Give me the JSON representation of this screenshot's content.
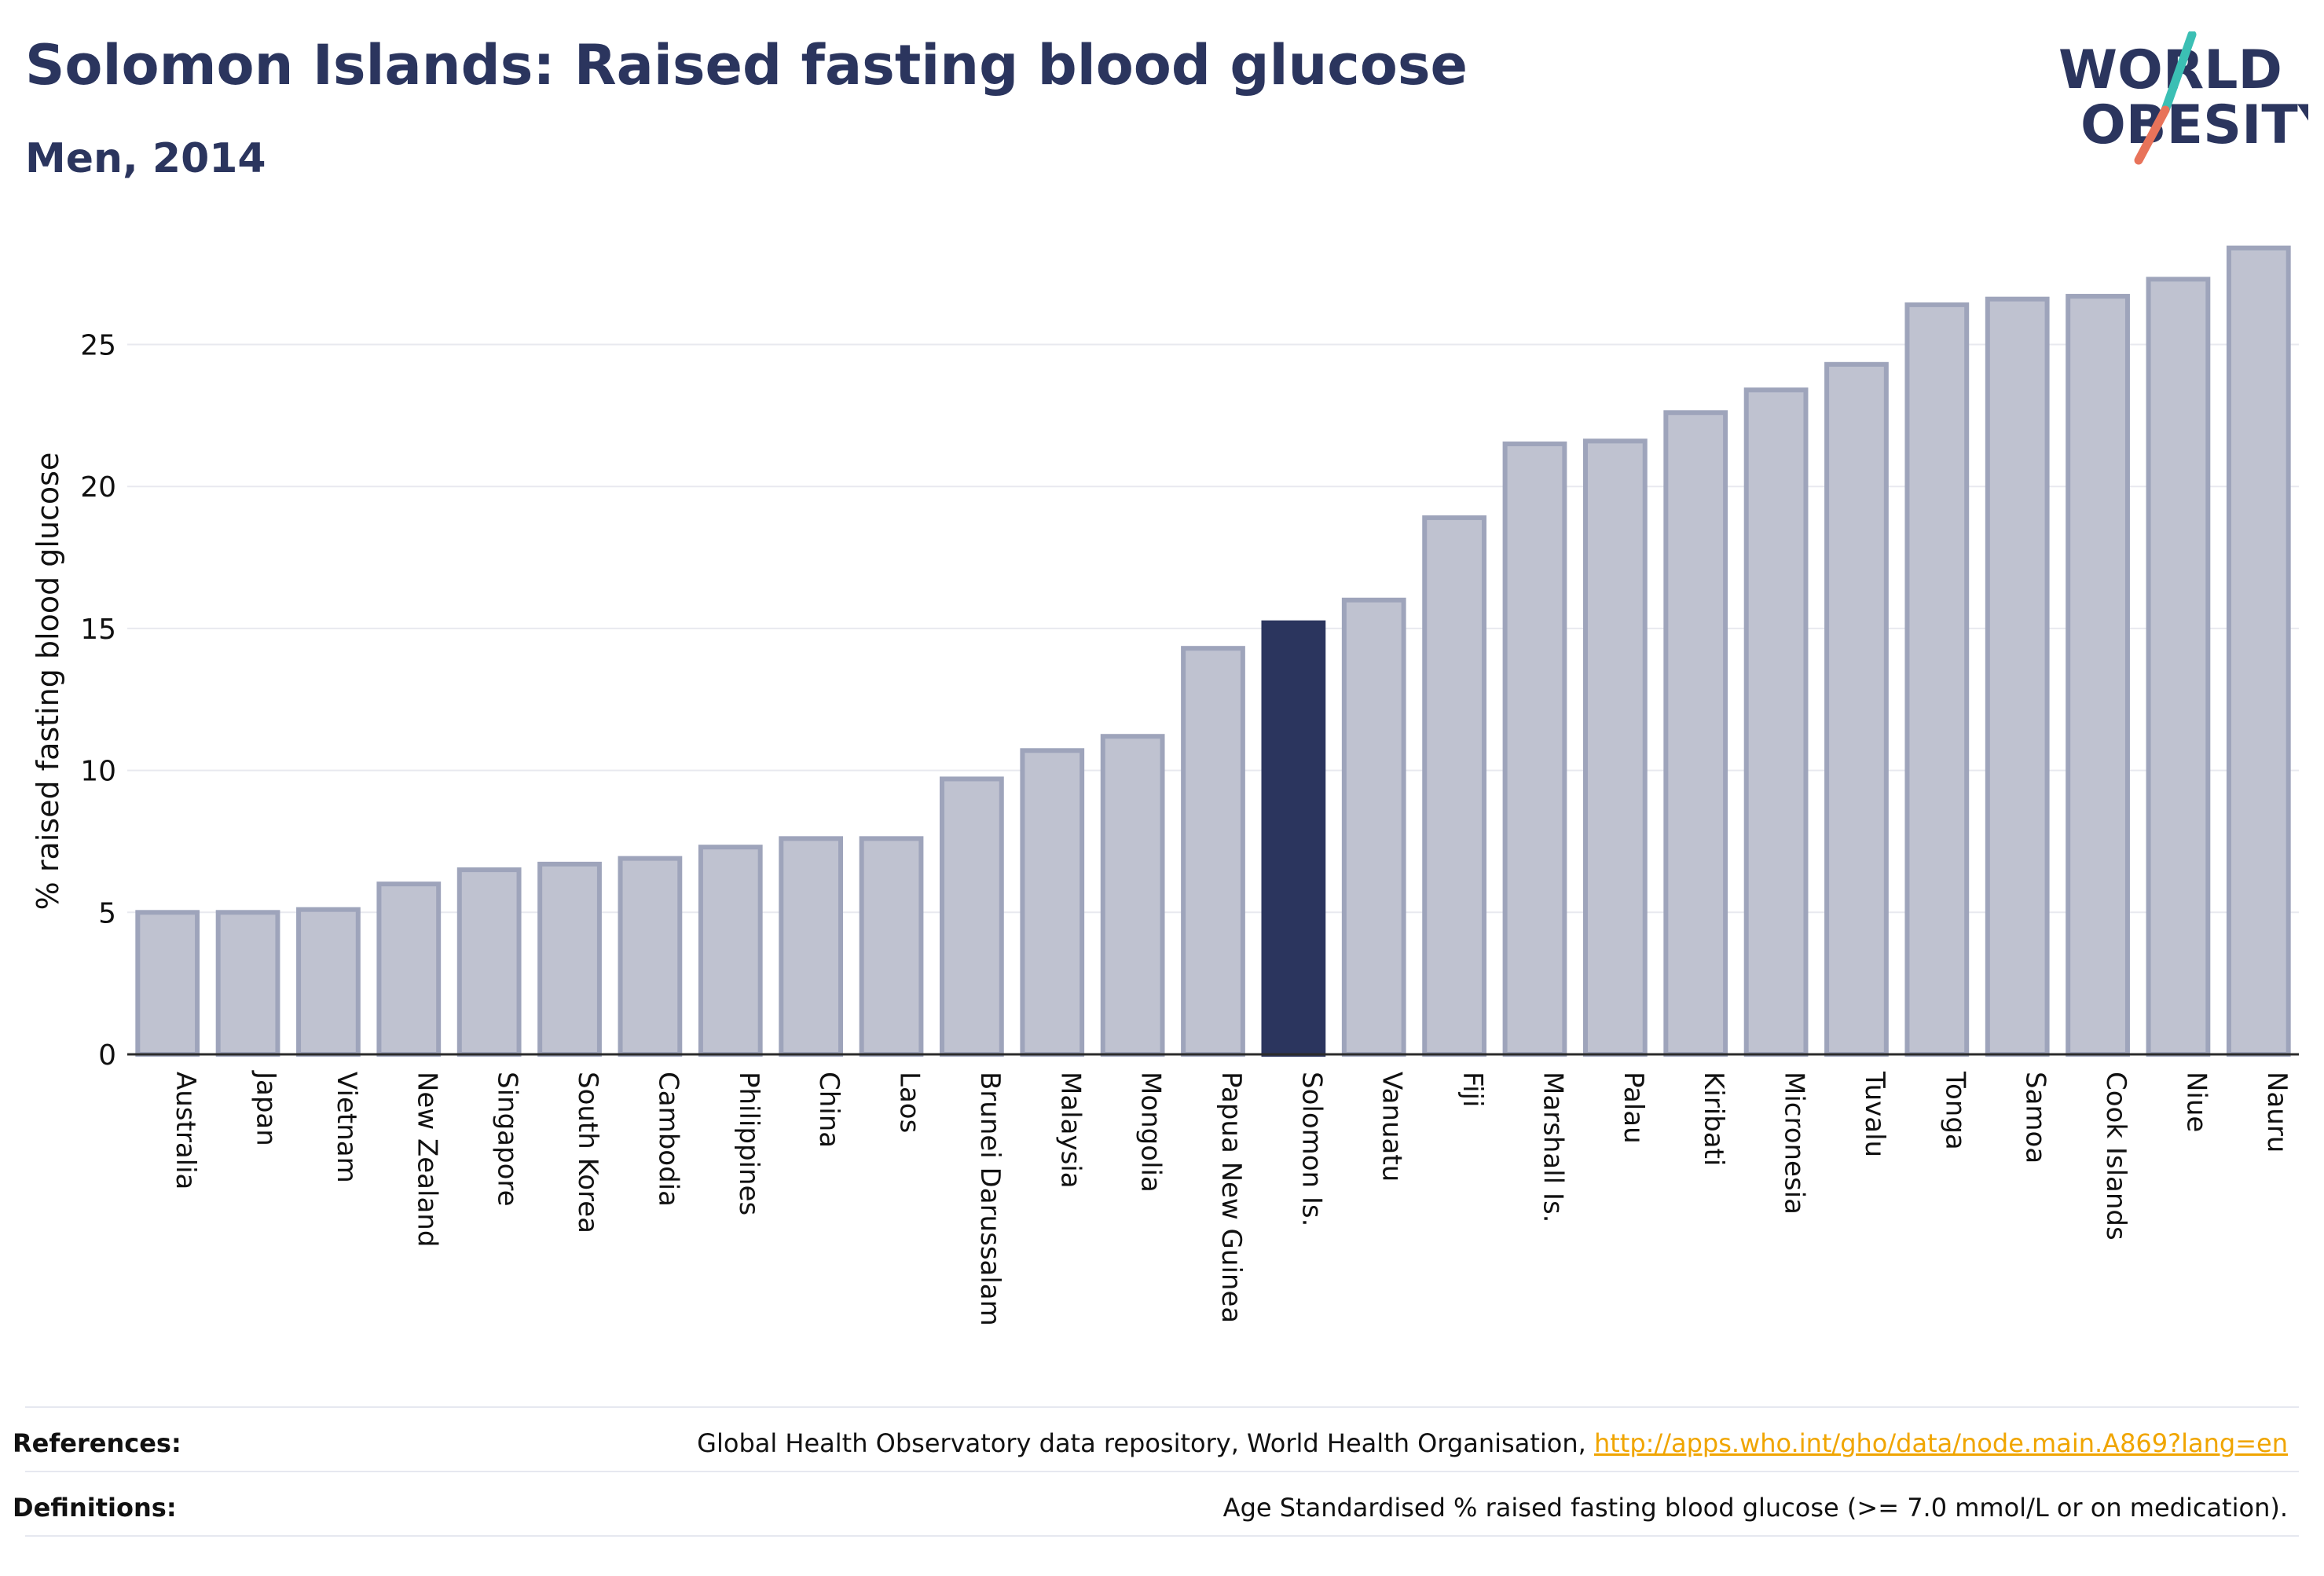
{
  "header": {
    "title": "Solomon Islands: Raised fasting blood glucose",
    "subtitle": "Men, 2014"
  },
  "logo": {
    "line1": "WORLD",
    "line2": "OBESITY",
    "text_color": "#2b355e",
    "slash_teal": "#3bbfb4",
    "slash_coral": "#e8735a"
  },
  "colors": {
    "bar_fill": "#bfc2d0",
    "bar_stroke": "#9ea4bb",
    "highlight_fill": "#2b355e",
    "grid": "#e8e9ef",
    "axis": "#2b2b2b"
  },
  "chart_data": {
    "type": "bar",
    "title": "Solomon Islands: Raised fasting blood glucose",
    "subtitle": "Men, 2014",
    "xlabel": "",
    "ylabel": "% raised fasting blood glucose",
    "ylim": [
      0,
      28.5
    ],
    "yticks": [
      0,
      5,
      10,
      15,
      20,
      25
    ],
    "grid": true,
    "highlight": "Solomon Is.",
    "categories": [
      "Australia",
      "Japan",
      "Vietnam",
      "New Zealand",
      "Singapore",
      "South Korea",
      "Cambodia",
      "Philippines",
      "China",
      "Laos",
      "Brunei Darussalam",
      "Malaysia",
      "Mongolia",
      "Papua New Guinea",
      "Solomon Is.",
      "Vanuatu",
      "Fiji",
      "Marshall Is.",
      "Palau",
      "Kiribati",
      "Micronesia",
      "Tuvalu",
      "Tonga",
      "Samoa",
      "Cook Islands",
      "Niue",
      "Nauru"
    ],
    "values": [
      5.0,
      5.0,
      5.1,
      6.0,
      6.5,
      6.7,
      6.9,
      7.3,
      7.6,
      7.6,
      9.7,
      10.7,
      11.2,
      14.3,
      15.2,
      16.0,
      18.9,
      21.5,
      21.6,
      22.6,
      23.4,
      24.3,
      26.4,
      26.6,
      26.7,
      27.3,
      28.4
    ]
  },
  "footer": {
    "references_label": "References:",
    "references_text": "Global Health Observatory data repository, World Health Organisation, ",
    "references_link": "http://apps.who.int/gho/data/node.main.A869?lang=en",
    "definitions_label": "Definitions:",
    "definitions_text": "Age Standardised % raised fasting blood glucose (>= 7.0 mmol/L or on medication)."
  }
}
